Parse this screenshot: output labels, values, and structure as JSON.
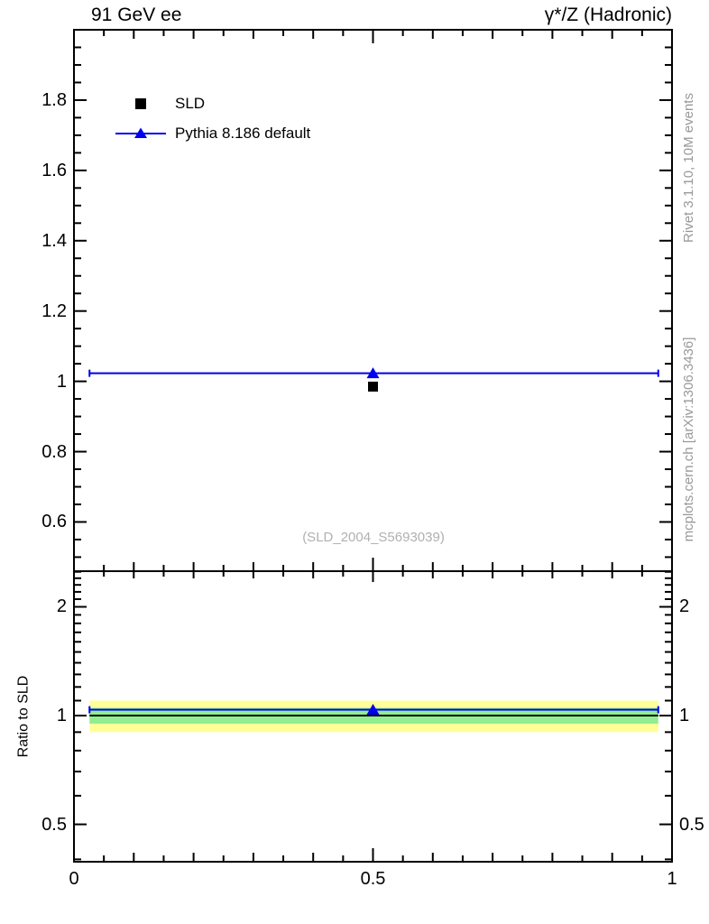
{
  "header": {
    "title_left": "91 GeV ee",
    "title_right": "γ*/Z (Hadronic)"
  },
  "side_labels": {
    "rivet": "Rivet 3.1.10, 10M events",
    "mcplots": "mcplots.cern.ch [arXiv:1306.3436]"
  },
  "watermark": "(SLD_2004_S5693039)",
  "legend": {
    "items": [
      {
        "label": "SLD",
        "marker": "black-square"
      },
      {
        "label": "Pythia 8.186 default",
        "marker": "blue-line-triangle"
      }
    ]
  },
  "ratio_ylabel": "Ratio to SLD",
  "colors": {
    "mc_blue": "#0000ee",
    "data_black": "#000000",
    "band_yellow": "#ffff99",
    "band_green": "#90ee90",
    "gray_text": "#999999",
    "axis": "#000000"
  },
  "chart_data": [
    {
      "id": "main",
      "type": "line",
      "title": "91 GeV ee  /  γ*/Z (Hadronic)",
      "xlabel": "",
      "ylabel": "",
      "xlim": [
        0,
        1
      ],
      "ylim": [
        0.46,
        2.0
      ],
      "yscale": "linear",
      "grid": false,
      "legend_position": "top-left",
      "xticks": {
        "major": [
          0,
          0.5,
          1
        ],
        "labels": [
          "0",
          "0.5",
          "1"
        ],
        "medium_step": 0.1,
        "minor_step": 0.05
      },
      "yticks": {
        "major": [
          0.6,
          0.8,
          1.0,
          1.2,
          1.4,
          1.6,
          1.8
        ],
        "labels": [
          "0.6",
          "0.8",
          "1",
          "1.2",
          "1.4",
          "1.6",
          "1.8"
        ],
        "minor_step": 0.05
      },
      "series": [
        {
          "name": "SLD",
          "type": "scatter",
          "marker": "square",
          "color": "#000000",
          "points": [
            {
              "x": 0.5,
              "y": 0.985
            }
          ]
        },
        {
          "name": "Pythia 8.186 default",
          "type": "hline",
          "marker": "triangle",
          "color": "#0000ee",
          "y": 1.023,
          "x_start": 0.026,
          "x_end": 0.977,
          "marker_x": 0.5
        }
      ]
    },
    {
      "id": "ratio",
      "type": "ratio",
      "ylabel": "Ratio to SLD",
      "xlim": [
        0,
        1
      ],
      "ylim": [
        0.394,
        2.51
      ],
      "yscale": "log",
      "xticks": {
        "major": [
          0,
          0.5,
          1
        ],
        "labels": [
          "0",
          "0.5",
          "1"
        ],
        "medium_step": 0.1,
        "minor_step": 0.05
      },
      "yticks": {
        "major": [
          0.5,
          1,
          2
        ],
        "labels": [
          "0.5",
          "1",
          "2"
        ],
        "minor_linear_step": 0.1,
        "minor_range": [
          0.4,
          2.5
        ]
      },
      "bands": [
        {
          "name": "data-uncertainty-10pct",
          "color": "#ffff99",
          "lo": 0.9,
          "hi": 1.1,
          "x_start": 0.026,
          "x_end": 0.977
        },
        {
          "name": "data-uncertainty-5pct",
          "color": "#90ee90",
          "lo": 0.95,
          "hi": 1.05,
          "x_start": 0.026,
          "x_end": 0.977
        }
      ],
      "reference_line": {
        "y": 1.0,
        "color": "#000000",
        "x_start": 0.026,
        "x_end": 0.977
      },
      "series": [
        {
          "name": "Pythia 8.186 default",
          "type": "hline",
          "marker": "triangle",
          "color": "#0000ee",
          "y": 1.038,
          "x_start": 0.026,
          "x_end": 0.977,
          "marker_x": 0.5
        }
      ]
    }
  ]
}
